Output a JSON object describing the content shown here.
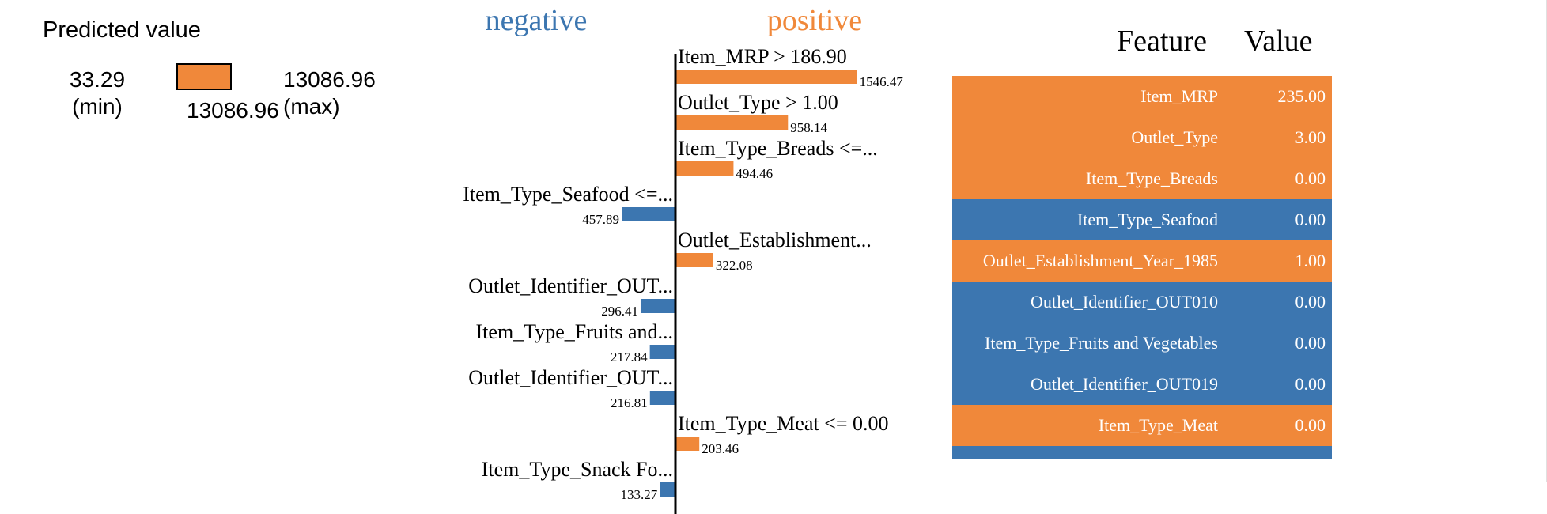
{
  "prediction": {
    "title": "Predicted value",
    "min_value": "33.29",
    "min_label": "(min)",
    "max_value": "13086.96",
    "max_label": "(max)",
    "predicted_value": "13086.96",
    "predicted_fraction": 1.0,
    "bar_color": "#F0883A"
  },
  "chart_data": {
    "type": "bar",
    "orientation": "horizontal",
    "negative_label": "negative",
    "positive_label": "positive",
    "colors": {
      "negative": "#3C76B0",
      "positive": "#F0883A"
    },
    "bars": [
      {
        "label": "Item_MRP > 186.90",
        "value": 1546.47,
        "value_label": "1546.47",
        "sign": "positive"
      },
      {
        "label": "Outlet_Type > 1.00",
        "value": 958.14,
        "value_label": "958.14",
        "sign": "positive"
      },
      {
        "label": "Item_Type_Breads <=...",
        "value": 494.46,
        "value_label": "494.46",
        "sign": "positive"
      },
      {
        "label": "Item_Type_Seafood <=...",
        "value": 457.89,
        "value_label": "457.89",
        "sign": "negative"
      },
      {
        "label": "Outlet_Establishment...",
        "value": 322.08,
        "value_label": "322.08",
        "sign": "positive"
      },
      {
        "label": "Outlet_Identifier_OUT...",
        "value": 296.41,
        "value_label": "296.41",
        "sign": "negative"
      },
      {
        "label": "Item_Type_Fruits and...",
        "value": 217.84,
        "value_label": "217.84",
        "sign": "negative"
      },
      {
        "label": "Outlet_Identifier_OUT...",
        "value": 216.81,
        "value_label": "216.81",
        "sign": "negative"
      },
      {
        "label": "Item_Type_Meat <= 0.00",
        "value": 203.46,
        "value_label": "203.46",
        "sign": "positive"
      },
      {
        "label": "Item_Type_Snack Fo...",
        "value": 133.27,
        "value_label": "133.27",
        "sign": "negative"
      }
    ]
  },
  "table": {
    "header_feature": "Feature",
    "header_value": "Value",
    "rows": [
      {
        "feature": "Item_MRP",
        "value": "235.00",
        "sign": "positive"
      },
      {
        "feature": "Outlet_Type",
        "value": "3.00",
        "sign": "positive"
      },
      {
        "feature": "Item_Type_Breads",
        "value": "0.00",
        "sign": "positive"
      },
      {
        "feature": "Item_Type_Seafood",
        "value": "0.00",
        "sign": "negative"
      },
      {
        "feature": "Outlet_Establishment_Year_1985",
        "value": "1.00",
        "sign": "positive"
      },
      {
        "feature": "Outlet_Identifier_OUT010",
        "value": "0.00",
        "sign": "negative"
      },
      {
        "feature": "Item_Type_Fruits and Vegetables",
        "value": "0.00",
        "sign": "negative"
      },
      {
        "feature": "Outlet_Identifier_OUT019",
        "value": "0.00",
        "sign": "negative"
      },
      {
        "feature": "Item_Type_Meat",
        "value": "0.00",
        "sign": "positive"
      },
      {
        "feature": "",
        "value": "",
        "sign": "negative"
      }
    ]
  }
}
